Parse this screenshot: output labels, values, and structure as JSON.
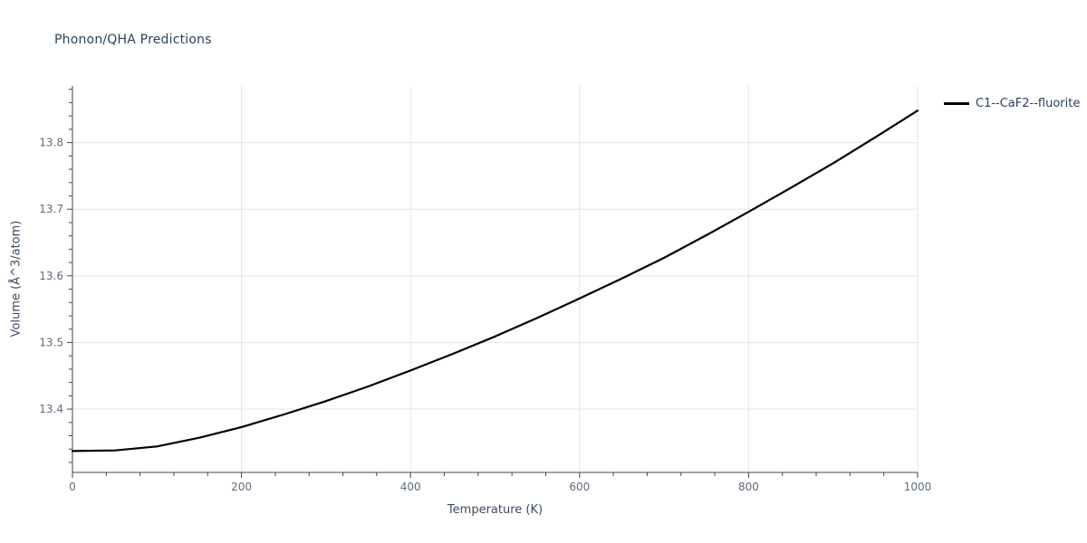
{
  "title": "Phonon/QHA Predictions",
  "legend": {
    "label": "C1--CaF2--fluorite",
    "line_color": "#000000"
  },
  "colors": {
    "title": "#2b3f5c",
    "axis_label": "#3b4c63",
    "tick_label": "#5f6b7a",
    "grid": "#e6e6e6",
    "axis": "#444444",
    "line": "#000000",
    "background": "#ffffff"
  },
  "chart_data": {
    "type": "line",
    "title": "Phonon/QHA Predictions",
    "xlabel": "Temperature (K)",
    "ylabel": "Volume (Å^3/atom)",
    "xlim": [
      0,
      1000
    ],
    "ylim": [
      13.305,
      13.885
    ],
    "x_ticks": [
      0,
      200,
      400,
      600,
      800,
      1000
    ],
    "y_ticks": [
      13.4,
      13.5,
      13.6,
      13.7,
      13.8
    ],
    "grid": true,
    "legend_position": "top-right",
    "series": [
      {
        "name": "C1--CaF2--fluorite",
        "color": "#000000",
        "x": [
          0,
          50,
          100,
          150,
          200,
          250,
          300,
          350,
          400,
          450,
          500,
          550,
          600,
          650,
          700,
          750,
          800,
          850,
          900,
          950,
          1000
        ],
        "y": [
          13.337,
          13.338,
          13.344,
          13.357,
          13.373,
          13.392,
          13.412,
          13.434,
          13.458,
          13.483,
          13.509,
          13.537,
          13.566,
          13.596,
          13.627,
          13.661,
          13.696,
          13.732,
          13.769,
          13.808,
          13.848
        ]
      }
    ]
  }
}
